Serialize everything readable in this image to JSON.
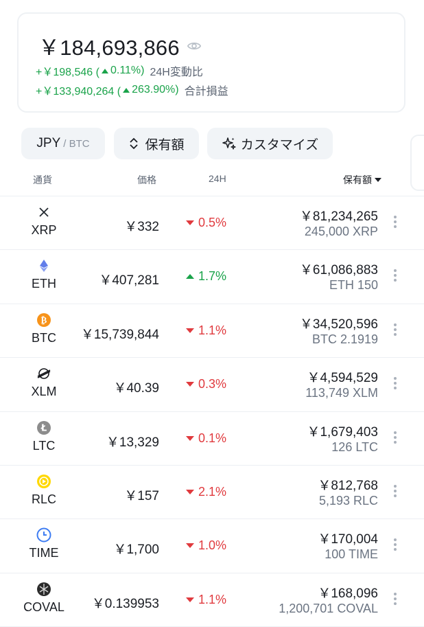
{
  "summary": {
    "total": "￥184,693,866",
    "change24h_prefix": "+￥198,546 (",
    "change24h_pct": "0.11%)",
    "change24h_label": "24H変動比",
    "pnl_prefix": "+￥133,940,264 (",
    "pnl_pct": "263.90%)",
    "pnl_label": "合計損益",
    "eye_icon": "eye-icon"
  },
  "controls": {
    "currency_main": "JPY",
    "currency_sub": "/ BTC",
    "sort_label": "保有額",
    "customize_label": "カスタマイズ"
  },
  "headers": {
    "currency": "通貨",
    "price": "価格",
    "change": "24H",
    "holding": "保有額"
  },
  "colors": {
    "up": "#1aa34a",
    "down": "#e03a3e"
  },
  "rows": [
    {
      "symbol": "XRP",
      "icon": "xrp-icon",
      "price": "￥332",
      "change": "0.5%",
      "dir": "down",
      "value": "￥81,234,265",
      "amount": "245,000 XRP"
    },
    {
      "symbol": "ETH",
      "icon": "eth-icon",
      "price": "￥407,281",
      "change": "1.7%",
      "dir": "up",
      "value": "￥61,086,883",
      "amount": "ETH 150"
    },
    {
      "symbol": "BTC",
      "icon": "btc-icon",
      "price": "￥15,739,844",
      "change": "1.1%",
      "dir": "down",
      "value": "￥34,520,596",
      "amount": "BTC 2.1919"
    },
    {
      "symbol": "XLM",
      "icon": "xlm-icon",
      "price": "￥40.39",
      "change": "0.3%",
      "dir": "down",
      "value": "￥4,594,529",
      "amount": "113,749 XLM"
    },
    {
      "symbol": "LTC",
      "icon": "ltc-icon",
      "price": "￥13,329",
      "change": "0.1%",
      "dir": "down",
      "value": "￥1,679,403",
      "amount": "126 LTC"
    },
    {
      "symbol": "RLC",
      "icon": "rlc-icon",
      "price": "￥157",
      "change": "2.1%",
      "dir": "down",
      "value": "￥812,768",
      "amount": "5,193 RLC"
    },
    {
      "symbol": "TIME",
      "icon": "time-icon",
      "price": "￥1,700",
      "change": "1.0%",
      "dir": "down",
      "value": "￥170,004",
      "amount": "100 TIME"
    },
    {
      "symbol": "COVAL",
      "icon": "coval-icon",
      "price": "￥0.139953",
      "change": "1.1%",
      "dir": "down",
      "value": "￥168,096",
      "amount": "1,200,701 COVAL"
    }
  ]
}
